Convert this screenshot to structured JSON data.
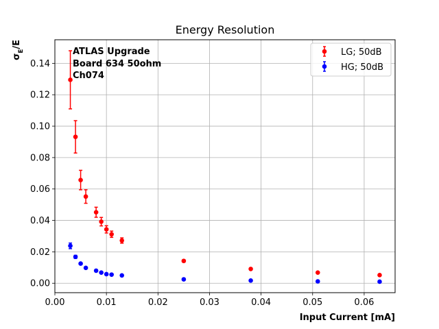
{
  "chart_data": {
    "type": "scatter",
    "title": "Energy Resolution",
    "xlabel": "Input Current [mA]",
    "ylabel": "σ",
    "ylabel_sub": "E",
    "ylabel_suffix": "/E",
    "xlim": [
      0.0,
      0.066
    ],
    "ylim": [
      -0.006,
      0.155
    ],
    "xticks": [
      0.0,
      0.01,
      0.02,
      0.03,
      0.04,
      0.05,
      0.06
    ],
    "xtick_labels": [
      "0.00",
      "0.01",
      "0.02",
      "0.03",
      "0.04",
      "0.05",
      "0.06"
    ],
    "yticks": [
      0.0,
      0.02,
      0.04,
      0.06,
      0.08,
      0.1,
      0.12,
      0.14
    ],
    "ytick_labels": [
      "0.00",
      "0.02",
      "0.04",
      "0.06",
      "0.08",
      "0.10",
      "0.12",
      "0.14"
    ],
    "grid": true,
    "legend_position": "top-right",
    "annotation": [
      "ATLAS Upgrade",
      "Board 634 50ohm",
      "Ch074"
    ],
    "series": [
      {
        "name": "LG; 50dB",
        "color": "#ff0000",
        "x": [
          0.003,
          0.004,
          0.005,
          0.006,
          0.008,
          0.009,
          0.01,
          0.011,
          0.013,
          0.025,
          0.038,
          0.051,
          0.063
        ],
        "y": [
          0.1295,
          0.0932,
          0.0657,
          0.0552,
          0.0452,
          0.0392,
          0.0343,
          0.0312,
          0.0272,
          0.0142,
          0.0091,
          0.0068,
          0.0052
        ],
        "yerr": [
          0.0185,
          0.0103,
          0.0062,
          0.0043,
          0.0032,
          0.0027,
          0.0023,
          0.002,
          0.0017,
          0.0008,
          0.0006,
          0.0004,
          0.0003
        ]
      },
      {
        "name": "HG; 50dB",
        "color": "#0000ff",
        "x": [
          0.003,
          0.004,
          0.005,
          0.006,
          0.008,
          0.009,
          0.01,
          0.011,
          0.013,
          0.025,
          0.038,
          0.051,
          0.063
        ],
        "y": [
          0.0238,
          0.0168,
          0.0125,
          0.0098,
          0.008,
          0.0068,
          0.0058,
          0.0055,
          0.005,
          0.0025,
          0.0017,
          0.0012,
          0.001
        ],
        "yerr": [
          0.0018,
          0.001,
          0.0007,
          0.0005,
          0.0004,
          0.0003,
          0.0003,
          0.0003,
          0.0002,
          0.0001,
          0.0001,
          0.0001,
          0.0001
        ]
      }
    ]
  }
}
